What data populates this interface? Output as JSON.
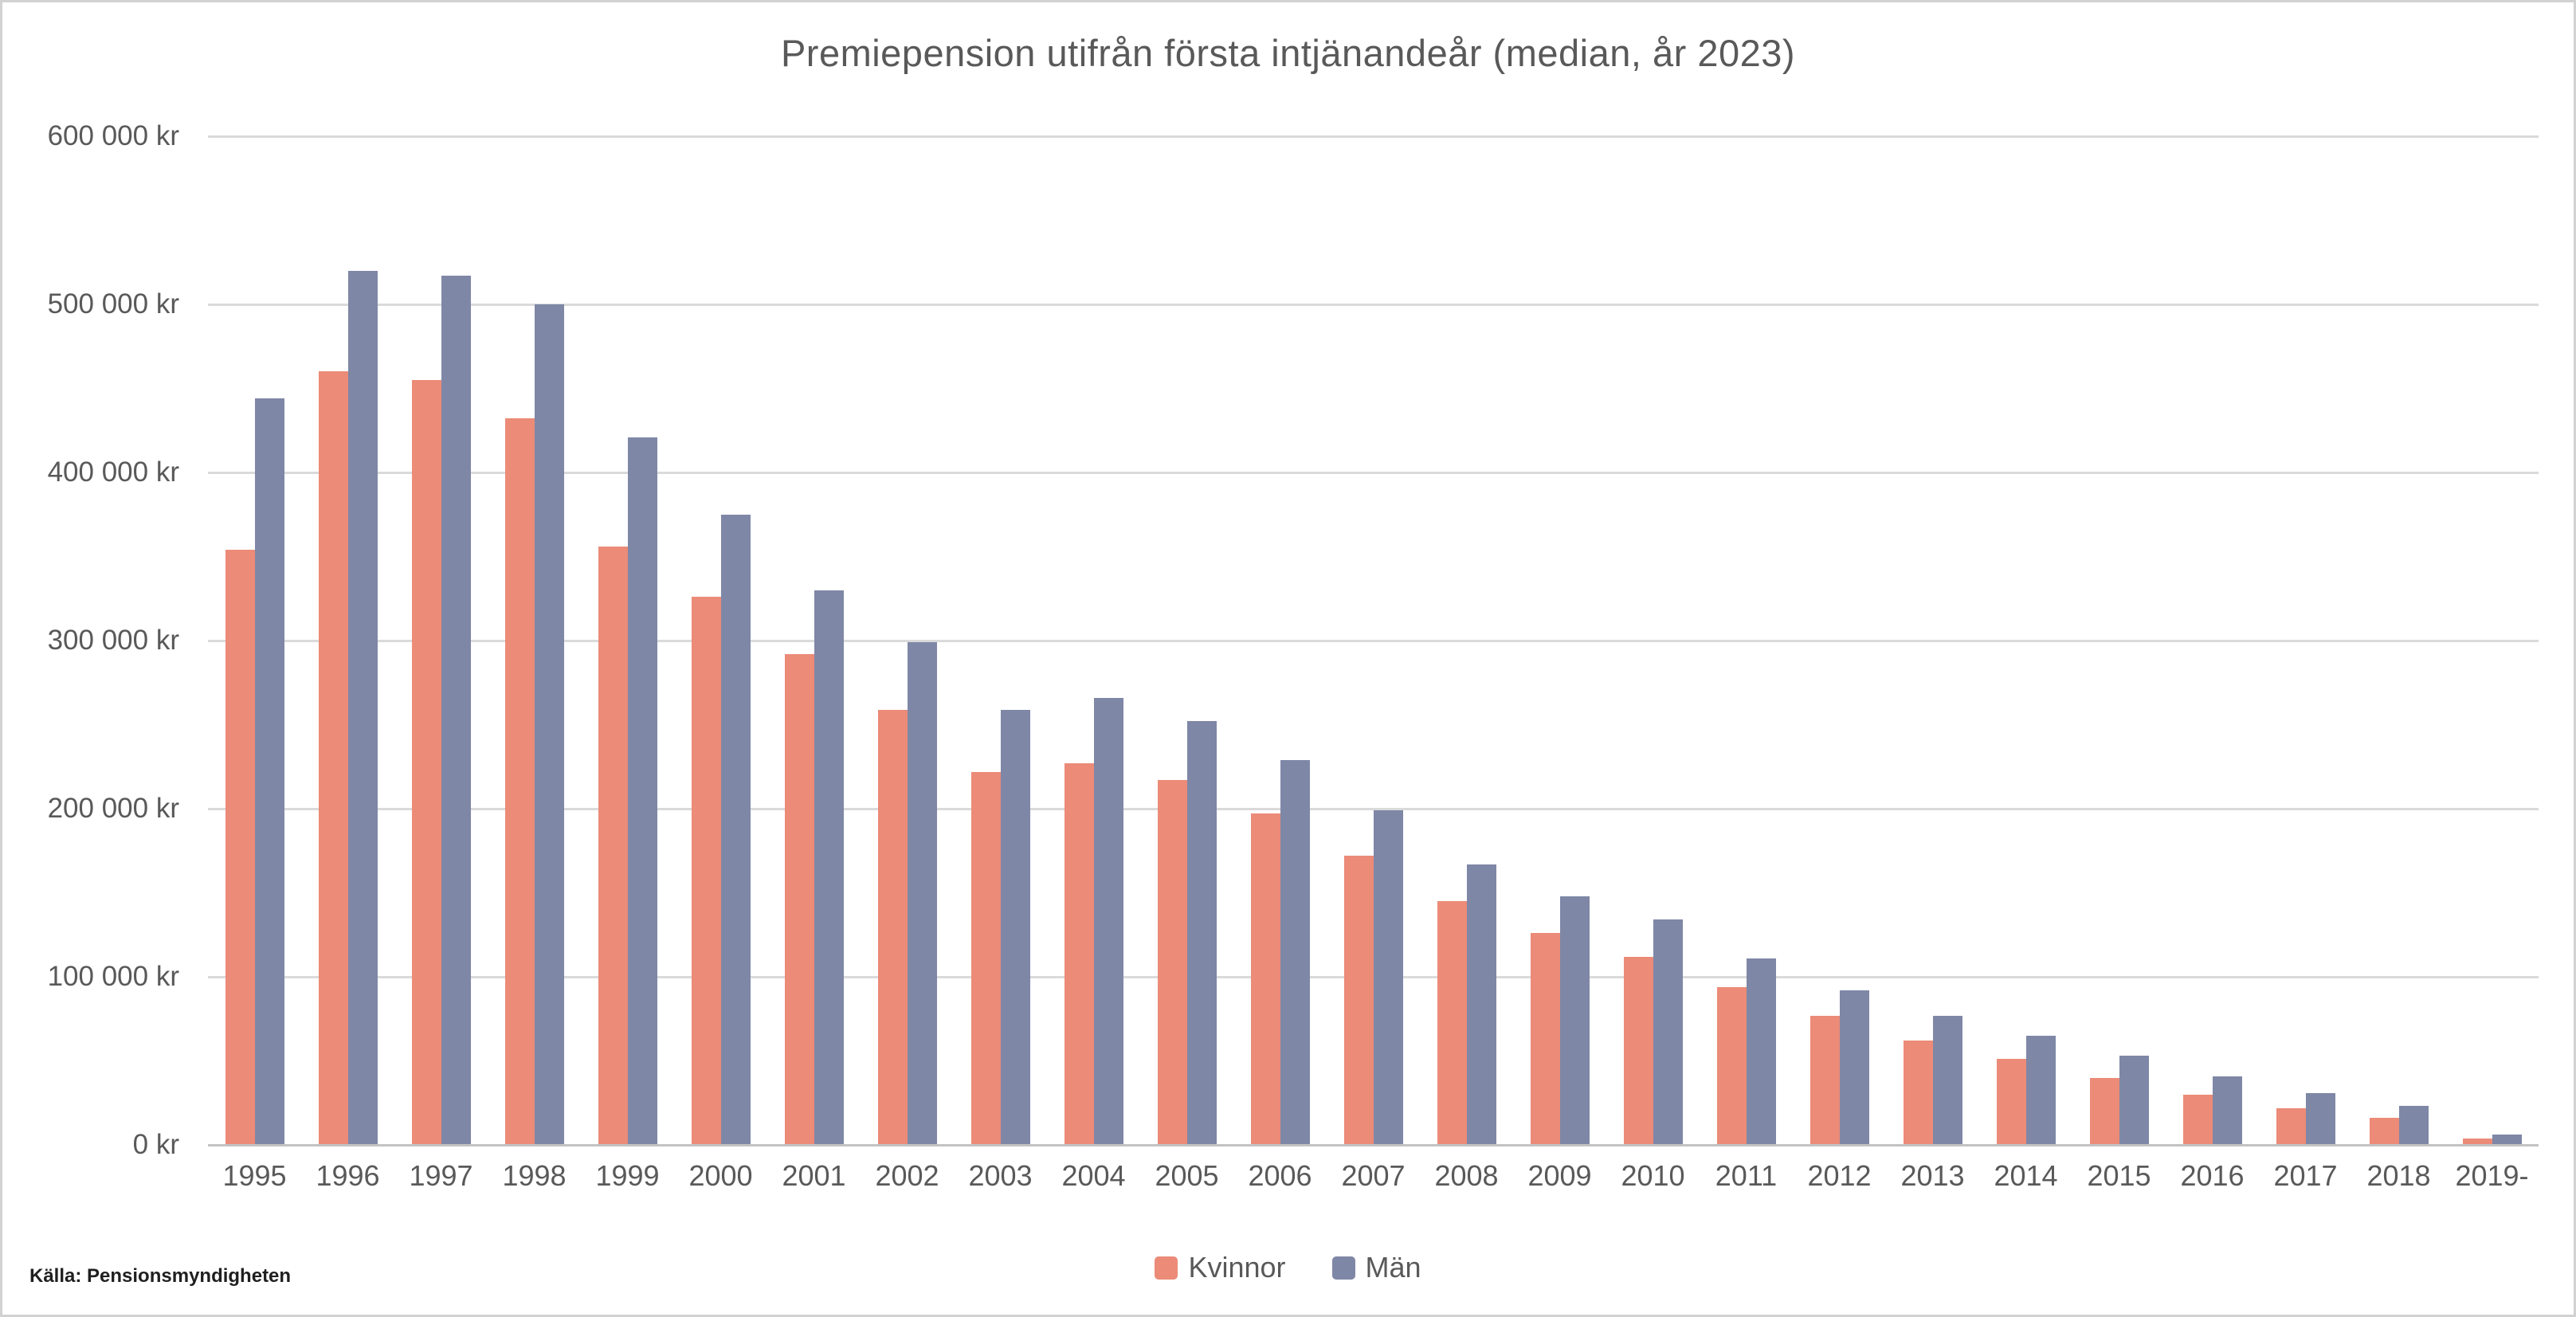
{
  "header": {
    "title": "Premiepension utifrån första intjänandeår (median, år 2023)"
  },
  "footer": {
    "source": "Källa: Pensionsmyndigheten"
  },
  "colors": {
    "kvinnor": "#EB8B78",
    "man": "#7F87A6",
    "gridline": "#DADADA",
    "axis_line": "#C3C3C3",
    "text": "#595959",
    "source_text": "#1F1F1F",
    "frame_border": "#D2D2D2"
  },
  "chart_data": {
    "type": "bar",
    "title": "Premiepension utifrån första intjänandeår (median, år 2023)",
    "xlabel": "",
    "ylabel": "",
    "ylim": [
      0,
      600000
    ],
    "grid": "horizontal",
    "legend_position": "bottom",
    "source": "Källa: Pensionsmyndigheten",
    "y_ticks": [
      {
        "value": 600000,
        "label": "600 000 kr"
      },
      {
        "value": 500000,
        "label": "500 000 kr"
      },
      {
        "value": 400000,
        "label": "400 000 kr"
      },
      {
        "value": 300000,
        "label": "300 000 kr"
      },
      {
        "value": 200000,
        "label": "200 000 kr"
      },
      {
        "value": 100000,
        "label": "100 000 kr"
      },
      {
        "value": 0,
        "label": "0 kr"
      }
    ],
    "categories": [
      "1995",
      "1996",
      "1997",
      "1998",
      "1999",
      "2000",
      "2001",
      "2002",
      "2003",
      "2004",
      "2005",
      "2006",
      "2007",
      "2008",
      "2009",
      "2010",
      "2011",
      "2012",
      "2013",
      "2014",
      "2015",
      "2016",
      "2017",
      "2018",
      "2019-"
    ],
    "series": [
      {
        "name": "Kvinnor",
        "color": "#EB8B78",
        "values": [
          354000,
          460000,
          455000,
          432000,
          356000,
          326000,
          292000,
          259000,
          222000,
          227000,
          217000,
          197000,
          172000,
          145000,
          126000,
          112000,
          94000,
          77000,
          62000,
          51000,
          40000,
          30000,
          22000,
          16000,
          4000
        ]
      },
      {
        "name": "Män",
        "color": "#7F87A6",
        "values": [
          444000,
          520000,
          517000,
          500000,
          421000,
          375000,
          330000,
          299000,
          259000,
          266000,
          252000,
          229000,
          199000,
          167000,
          148000,
          134000,
          111000,
          92000,
          77000,
          65000,
          53000,
          41000,
          31000,
          23000,
          6000
        ]
      }
    ]
  }
}
